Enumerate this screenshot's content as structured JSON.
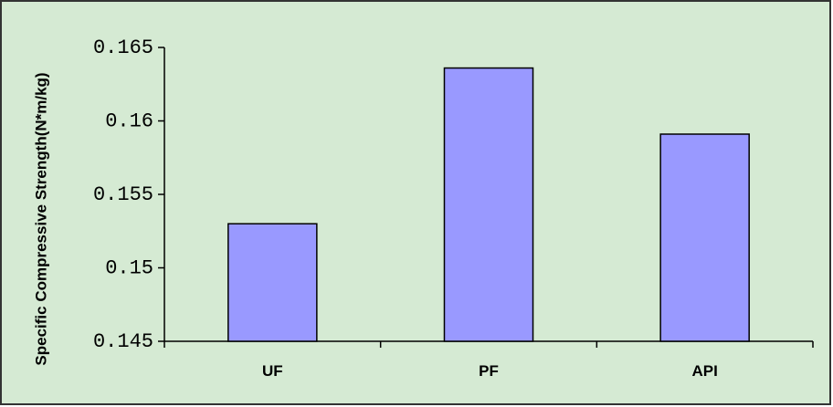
{
  "chart_data": {
    "type": "bar",
    "y_label": "Specific Compressive Strength(N*m/kg)",
    "categories": [
      "UF",
      "PF",
      "API"
    ],
    "values": [
      0.153,
      0.1636,
      0.1591
    ],
    "color": "#9999ff",
    "ylim": [
      0.145,
      0.165
    ],
    "yticks": [
      0.145,
      0.15,
      0.155,
      0.16,
      0.165
    ],
    "grid": false
  }
}
